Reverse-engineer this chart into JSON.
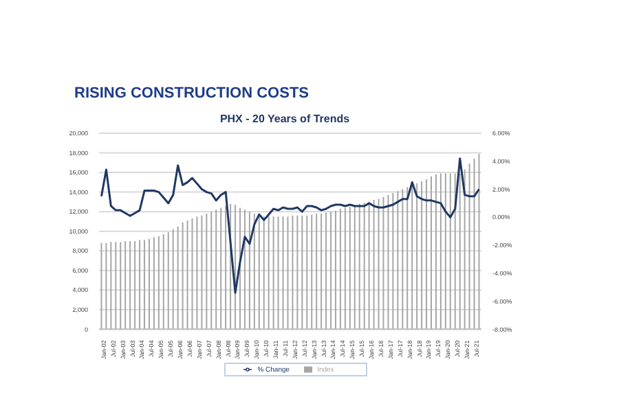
{
  "chart_data": {
    "type": "bar",
    "title": "RISING CONSTRUCTION COSTS",
    "subtitle": "PHX - 20 Years of Trends",
    "categories": [
      "Jan-02",
      null,
      "Jul-02",
      null,
      "Jan-03",
      null,
      "Jul-03",
      null,
      "Jan-04",
      null,
      "Jul-04",
      null,
      "Jan-05",
      null,
      "Jul-05",
      null,
      "Jan-06",
      null,
      "Jul-06",
      null,
      "Jan-07",
      null,
      "Jul-07",
      null,
      "Jan-08",
      null,
      "Jul-08",
      null,
      "Jan-09",
      null,
      "Jul-09",
      null,
      "Jan-10",
      null,
      "Jul-10",
      null,
      "Jan-11",
      null,
      "Jul-11",
      null,
      "Jan-12",
      null,
      "Jul-12",
      null,
      "Jan-13",
      null,
      "Jul-13",
      null,
      "Jan-14",
      null,
      "Jul-14",
      null,
      "Jan-15",
      null,
      "Jul-15",
      null,
      "Jan-16",
      null,
      "Jul-16",
      null,
      "Jan-17",
      null,
      "Jul-17",
      null,
      "Jan-18",
      null,
      "Jul-18",
      null,
      "Jan-19",
      null,
      "Jul-19",
      null,
      "Jan-20",
      null,
      "Jul-20",
      null,
      "Jan-21",
      null,
      "Jul-21",
      null
    ],
    "series": [
      {
        "name": "Index",
        "color": "#a6a6a6",
        "values": [
          8800,
          8800,
          8900,
          8900,
          8900,
          9000,
          9000,
          9000,
          9100,
          9100,
          9200,
          9400,
          9500,
          9700,
          9900,
          10200,
          10500,
          10900,
          11100,
          11300,
          11500,
          11600,
          11800,
          12000,
          12200,
          12400,
          12600,
          12800,
          12700,
          12400,
          12200,
          12000,
          11800,
          11600,
          11500,
          11500,
          11500,
          11500,
          11500,
          11500,
          11600,
          11600,
          11600,
          11600,
          11700,
          11800,
          11800,
          11900,
          12000,
          12100,
          12300,
          12400,
          12500,
          12600,
          12800,
          12900,
          13000,
          13200,
          13300,
          13500,
          13700,
          13900,
          14100,
          14300,
          14500,
          14700,
          14900,
          15100,
          15300,
          15600,
          15800,
          15900,
          15900,
          15900,
          15900,
          15900,
          16300,
          16900,
          17400,
          17900
        ]
      },
      {
        "name": "% Change",
        "type": "line",
        "axis": "y2",
        "color": "#1f3864",
        "values": [
          1.5,
          3.4,
          0.8,
          0.5,
          0.5,
          0.3,
          0.1,
          0.3,
          0.5,
          1.9,
          1.9,
          1.9,
          1.8,
          1.4,
          1.0,
          1.6,
          3.7,
          2.3,
          2.5,
          2.8,
          2.4,
          2.0,
          1.8,
          1.7,
          1.2,
          1.6,
          1.8,
          -1.8,
          -5.4,
          -3.2,
          -1.4,
          -1.9,
          -0.5,
          0.2,
          -0.2,
          0.2,
          0.6,
          0.5,
          0.7,
          0.6,
          0.6,
          0.7,
          0.4,
          0.8,
          0.8,
          0.7,
          0.5,
          0.6,
          0.8,
          0.9,
          0.9,
          0.8,
          0.9,
          0.8,
          0.8,
          0.8,
          1.0,
          0.8,
          0.7,
          0.7,
          0.8,
          0.9,
          1.1,
          1.3,
          1.3,
          2.5,
          1.5,
          1.3,
          1.2,
          1.2,
          1.1,
          1.0,
          0.4,
          0.0,
          0.6,
          4.2,
          1.6,
          1.5,
          1.5,
          2.0
        ]
      }
    ],
    "ylim": [
      0,
      20000
    ],
    "yticks": [
      0,
      {
        "value": 2000,
        "label": "2,000"
      },
      {
        "value": 4000,
        "label": "4,000"
      },
      {
        "value": 6000,
        "label": "6,000"
      },
      {
        "value": 8000,
        "label": "8,000"
      },
      {
        "value": 10000,
        "label": "10,000"
      },
      {
        "value": 12000,
        "label": "12,000"
      },
      {
        "value": 14000,
        "label": "14,000"
      },
      {
        "value": 16000,
        "label": "16,000"
      },
      {
        "value": 18000,
        "label": "18,000"
      },
      {
        "value": 20000,
        "label": "20,000"
      }
    ],
    "y2lim": [
      -8,
      6
    ],
    "y2ticks": [
      {
        "value": -8,
        "label": "-8.00%"
      },
      {
        "value": -6,
        "label": "-6.00%"
      },
      {
        "value": -4,
        "label": "-4.00%"
      },
      {
        "value": -2,
        "label": "-2.00%"
      },
      {
        "value": 0,
        "label": "0.00%"
      },
      {
        "value": 2,
        "label": "2.00%"
      },
      {
        "value": 4,
        "label": "4.00%"
      },
      {
        "value": 6,
        "label": "6.00%"
      }
    ],
    "grid": "y",
    "legend": "bottom",
    "marker": "none",
    "line_style": "solid"
  }
}
